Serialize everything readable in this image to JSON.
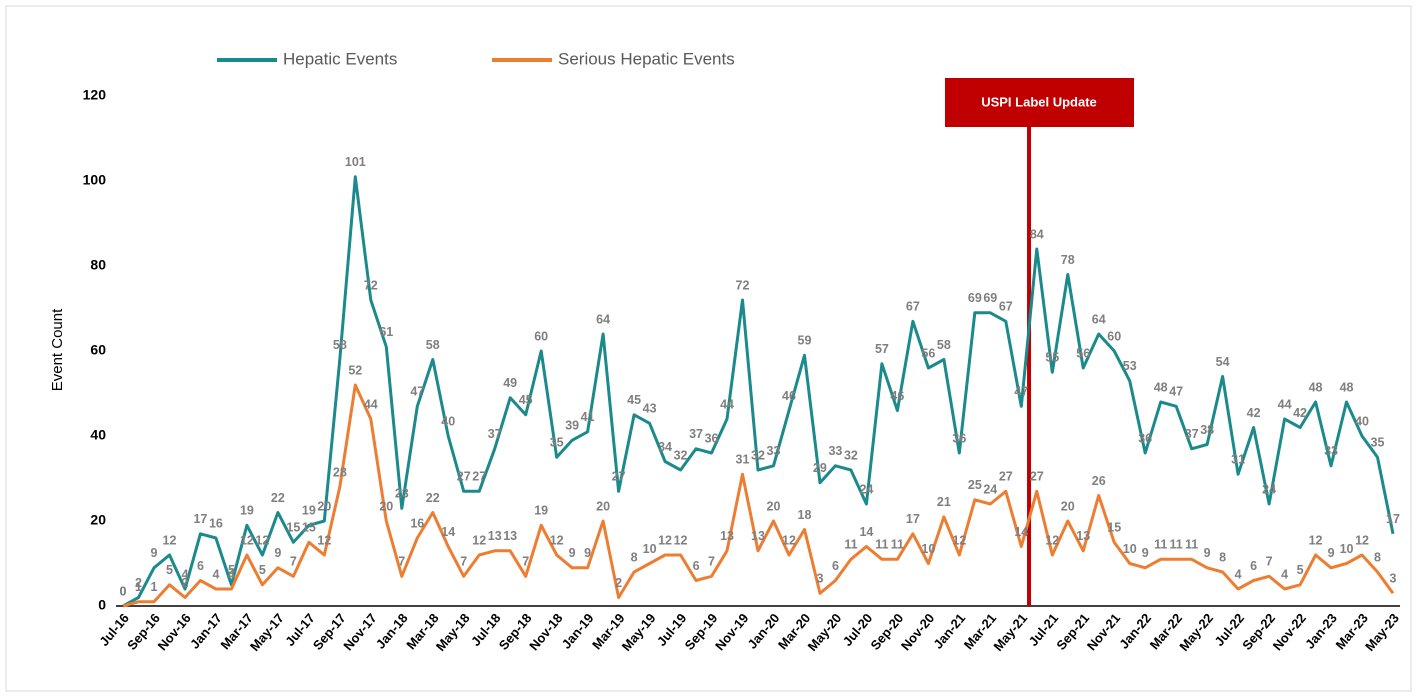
{
  "chart_data": {
    "type": "line",
    "y_label": "Event Count",
    "annotation": "USPI Label Update",
    "categories": [
      "Jul-16",
      null,
      "Sep-16",
      null,
      "Nov-16",
      null,
      "Jan-17",
      null,
      "Mar-17",
      null,
      "May-17",
      null,
      "Jul-17",
      null,
      "Sep-17",
      null,
      "Nov-17",
      null,
      "Jan-18",
      null,
      "Mar-18",
      null,
      "May-18",
      null,
      "Jul-18",
      null,
      "Sep-18",
      null,
      "Nov-18",
      null,
      "Jan-19",
      null,
      "Mar-19",
      null,
      "May-19",
      null,
      "Jul-19",
      null,
      "Sep-19",
      null,
      "Nov-19",
      null,
      "Jan-20",
      null,
      "Mar-20",
      null,
      "May-20",
      null,
      "Jul-20",
      null,
      "Sep-20",
      null,
      "Nov-20",
      null,
      "Jan-21",
      null,
      "Mar-21",
      null,
      "May-21",
      null,
      "Jul-21",
      null,
      "Sep-21",
      null,
      "Nov-21",
      null,
      "Jan-22",
      null,
      "Mar-22",
      null,
      "May-22",
      null,
      "Jul-22",
      null,
      "Sep-22",
      null,
      "Nov-22",
      null,
      "Jan-23",
      null,
      "Mar-23",
      null,
      "May-23"
    ],
    "series": [
      {
        "name": "Hepatic Events",
        "color": "#1b8a8c",
        "values": [
          0,
          2,
          9,
          12,
          4,
          17,
          16,
          5,
          19,
          12,
          22,
          15,
          19,
          20,
          58,
          101,
          72,
          61,
          23,
          47,
          58,
          40,
          27,
          27,
          37,
          49,
          45,
          60,
          35,
          39,
          41,
          64,
          27,
          45,
          43,
          34,
          32,
          37,
          36,
          44,
          72,
          32,
          33,
          46,
          59,
          29,
          33,
          32,
          24,
          57,
          46,
          67,
          56,
          58,
          36,
          69,
          69,
          67,
          47,
          84,
          55,
          78,
          56,
          64,
          60,
          53,
          36,
          48,
          47,
          37,
          38,
          54,
          31,
          42,
          24,
          44,
          42,
          48,
          33,
          48,
          40,
          35,
          17
        ]
      },
      {
        "name": "Serious Hepatic Events",
        "color": "#ed7d31",
        "values": [
          0,
          1,
          1,
          5,
          2,
          6,
          4,
          4,
          12,
          5,
          9,
          7,
          15,
          12,
          28,
          52,
          44,
          20,
          7,
          16,
          22,
          14,
          7,
          12,
          13,
          13,
          7,
          19,
          12,
          9,
          9,
          20,
          2,
          8,
          10,
          12,
          12,
          6,
          7,
          13,
          31,
          13,
          20,
          12,
          18,
          3,
          6,
          11,
          14,
          11,
          11,
          17,
          10,
          21,
          12,
          25,
          24,
          27,
          14,
          27,
          12,
          20,
          13,
          26,
          15,
          10,
          9,
          11,
          11,
          11,
          9,
          8,
          4,
          6,
          7,
          4,
          5,
          12,
          9,
          10,
          12,
          8,
          3
        ]
      }
    ],
    "ylim": [
      0,
      120
    ],
    "yticks": [
      0,
      20,
      40,
      60,
      80,
      100,
      120
    ],
    "grid": false
  }
}
